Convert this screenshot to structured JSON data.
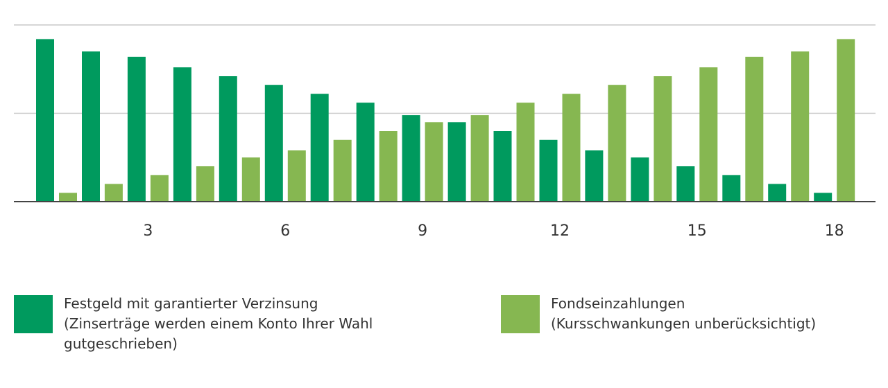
{
  "chart_data": {
    "type": "bar",
    "categories": [
      "1",
      "2",
      "3",
      "4",
      "5",
      "6",
      "7",
      "8",
      "9",
      "10",
      "11",
      "12",
      "13",
      "14",
      "15",
      "16",
      "17",
      "18"
    ],
    "series": [
      {
        "name": "Festgeld mit garantierter Verzinsung\n(Zinserträge werden einem Konto Ihrer Wahl\ngutgeschrieben)",
        "color": "#009a5e",
        "values": [
          92,
          85,
          82,
          76,
          71,
          66,
          61,
          56,
          49,
          45,
          40,
          35,
          29,
          25,
          20,
          15,
          10,
          5
        ]
      },
      {
        "name": "Fondseinzahlungen\n(Kursschwankungen unberücksichtigt)",
        "color": "#86b751",
        "values": [
          5,
          10,
          15,
          20,
          25,
          29,
          35,
          40,
          45,
          49,
          56,
          61,
          66,
          71,
          76,
          82,
          85,
          92
        ]
      }
    ],
    "x_tick_labels": [
      {
        "category": "3",
        "label": "3"
      },
      {
        "category": "6",
        "label": "6"
      },
      {
        "category": "9",
        "label": "9"
      },
      {
        "category": "12",
        "label": "12"
      },
      {
        "category": "15",
        "label": "15"
      },
      {
        "category": "18",
        "label": "18"
      }
    ],
    "ylim": [
      0,
      100
    ],
    "gridlines": [
      50,
      100
    ],
    "grid": true,
    "legend_position": "bottom",
    "title": "",
    "xlabel": "",
    "ylabel": ""
  }
}
